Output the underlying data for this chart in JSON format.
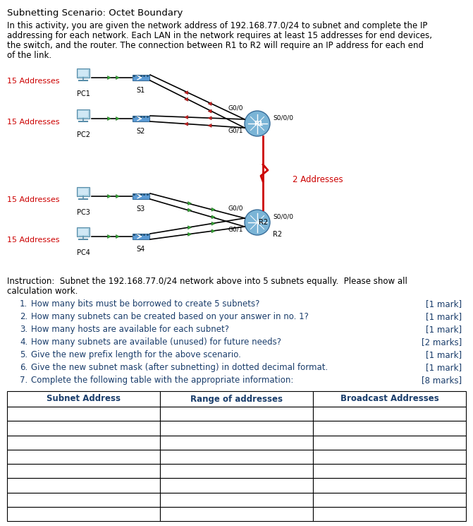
{
  "title": "Subnetting Scenario: Octet Boundary",
  "intro_text": "In this activity, you are given the network address of 192.168.77.0/24 to subnet and complete the IP\naddressing for each network. Each LAN in the network requires at least 15 addresses for end devices,\nthe switch, and the router. The connection between R1 to R2 will require an IP address for each end\nof the link.",
  "instruction_text": "Instruction:  Subnet the 192.168.77.0/24 network above into 5 subnets equally.  Please show all\ncalculation work.",
  "questions": [
    {
      "num": "1.",
      "text": "How many bits must be borrowed to create 5 subnets?",
      "mark": "[1 mark]"
    },
    {
      "num": "2.",
      "text": "How many subnets can be created based on your answer in no. 1?",
      "mark": "[1 mark]"
    },
    {
      "num": "3.",
      "text": "How many hosts are available for each subnet?",
      "mark": "[1 mark]"
    },
    {
      "num": "4.",
      "text": "How many subnets are available (unused) for future needs?",
      "mark": "[2 marks]"
    },
    {
      "num": "5.",
      "text": "Give the new prefix length for the above scenario.",
      "mark": "[1 mark]"
    },
    {
      "num": "6.",
      "text": "Give the new subnet mask (after subnetting) in dotted decimal format.",
      "mark": "[1 mark]"
    },
    {
      "num": "7.",
      "text": "Complete the following table with the appropriate information:",
      "mark": "[8 marks]"
    }
  ],
  "table_headers": [
    "Subnet Address",
    "Range of addresses",
    "Broadcast Addresses"
  ],
  "table_rows": 8,
  "network_labels": [
    "15 Addresses",
    "15 Addresses",
    "15 Addresses",
    "15 Addresses"
  ],
  "wan_label": "2 Addresses",
  "pc_labels": [
    "PC1",
    "PC2",
    "PC3",
    "PC4"
  ],
  "switch_labels": [
    "S1",
    "S2",
    "S3",
    "S4"
  ],
  "title_color": "#000000",
  "body_text_color": "#000000",
  "label_red_color": "#cc0000",
  "question_color": "#1a3d6b",
  "table_header_color": "#1a3d6b",
  "bg_color": "#ffffff",
  "arrow_red": "#cc0000",
  "arrow_green": "#339933"
}
